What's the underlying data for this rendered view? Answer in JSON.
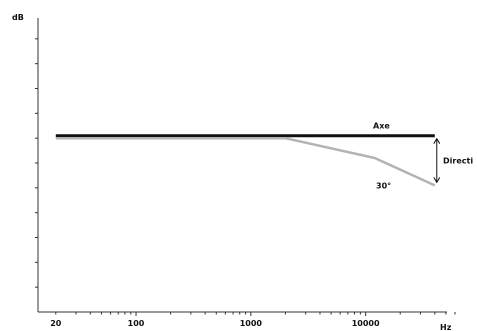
{
  "chart_data": {
    "type": "line",
    "xscale": "log",
    "ylabel": "dB",
    "xlabel": "Hz",
    "xlim": [
      14,
      60000
    ],
    "ylim": [
      0,
      12
    ],
    "x_ticks": [
      {
        "value": 20,
        "label": "20"
      },
      {
        "value": 100,
        "label": "100"
      },
      {
        "value": 1000,
        "label": "1000"
      },
      {
        "value": 10000,
        "label": "10000"
      }
    ],
    "y_minor_ticks": [
      1,
      2,
      3,
      4,
      5,
      6,
      7,
      8,
      9,
      10,
      11
    ],
    "series": [
      {
        "name": "Axe",
        "color": "#111111",
        "points": [
          [
            20,
            7.1
          ],
          [
            40000,
            7.1
          ]
        ]
      },
      {
        "name": "30°",
        "color": "#b3b3b3",
        "points": [
          [
            20,
            7.0
          ],
          [
            2000,
            7.0
          ],
          [
            12000,
            6.2
          ],
          [
            40000,
            5.1
          ]
        ]
      }
    ],
    "annotation": {
      "label": "Directi",
      "icon": "double-headed-arrow",
      "x": 40000,
      "y_top": 7.1,
      "y_bottom": 5.1
    },
    "grid": false
  }
}
